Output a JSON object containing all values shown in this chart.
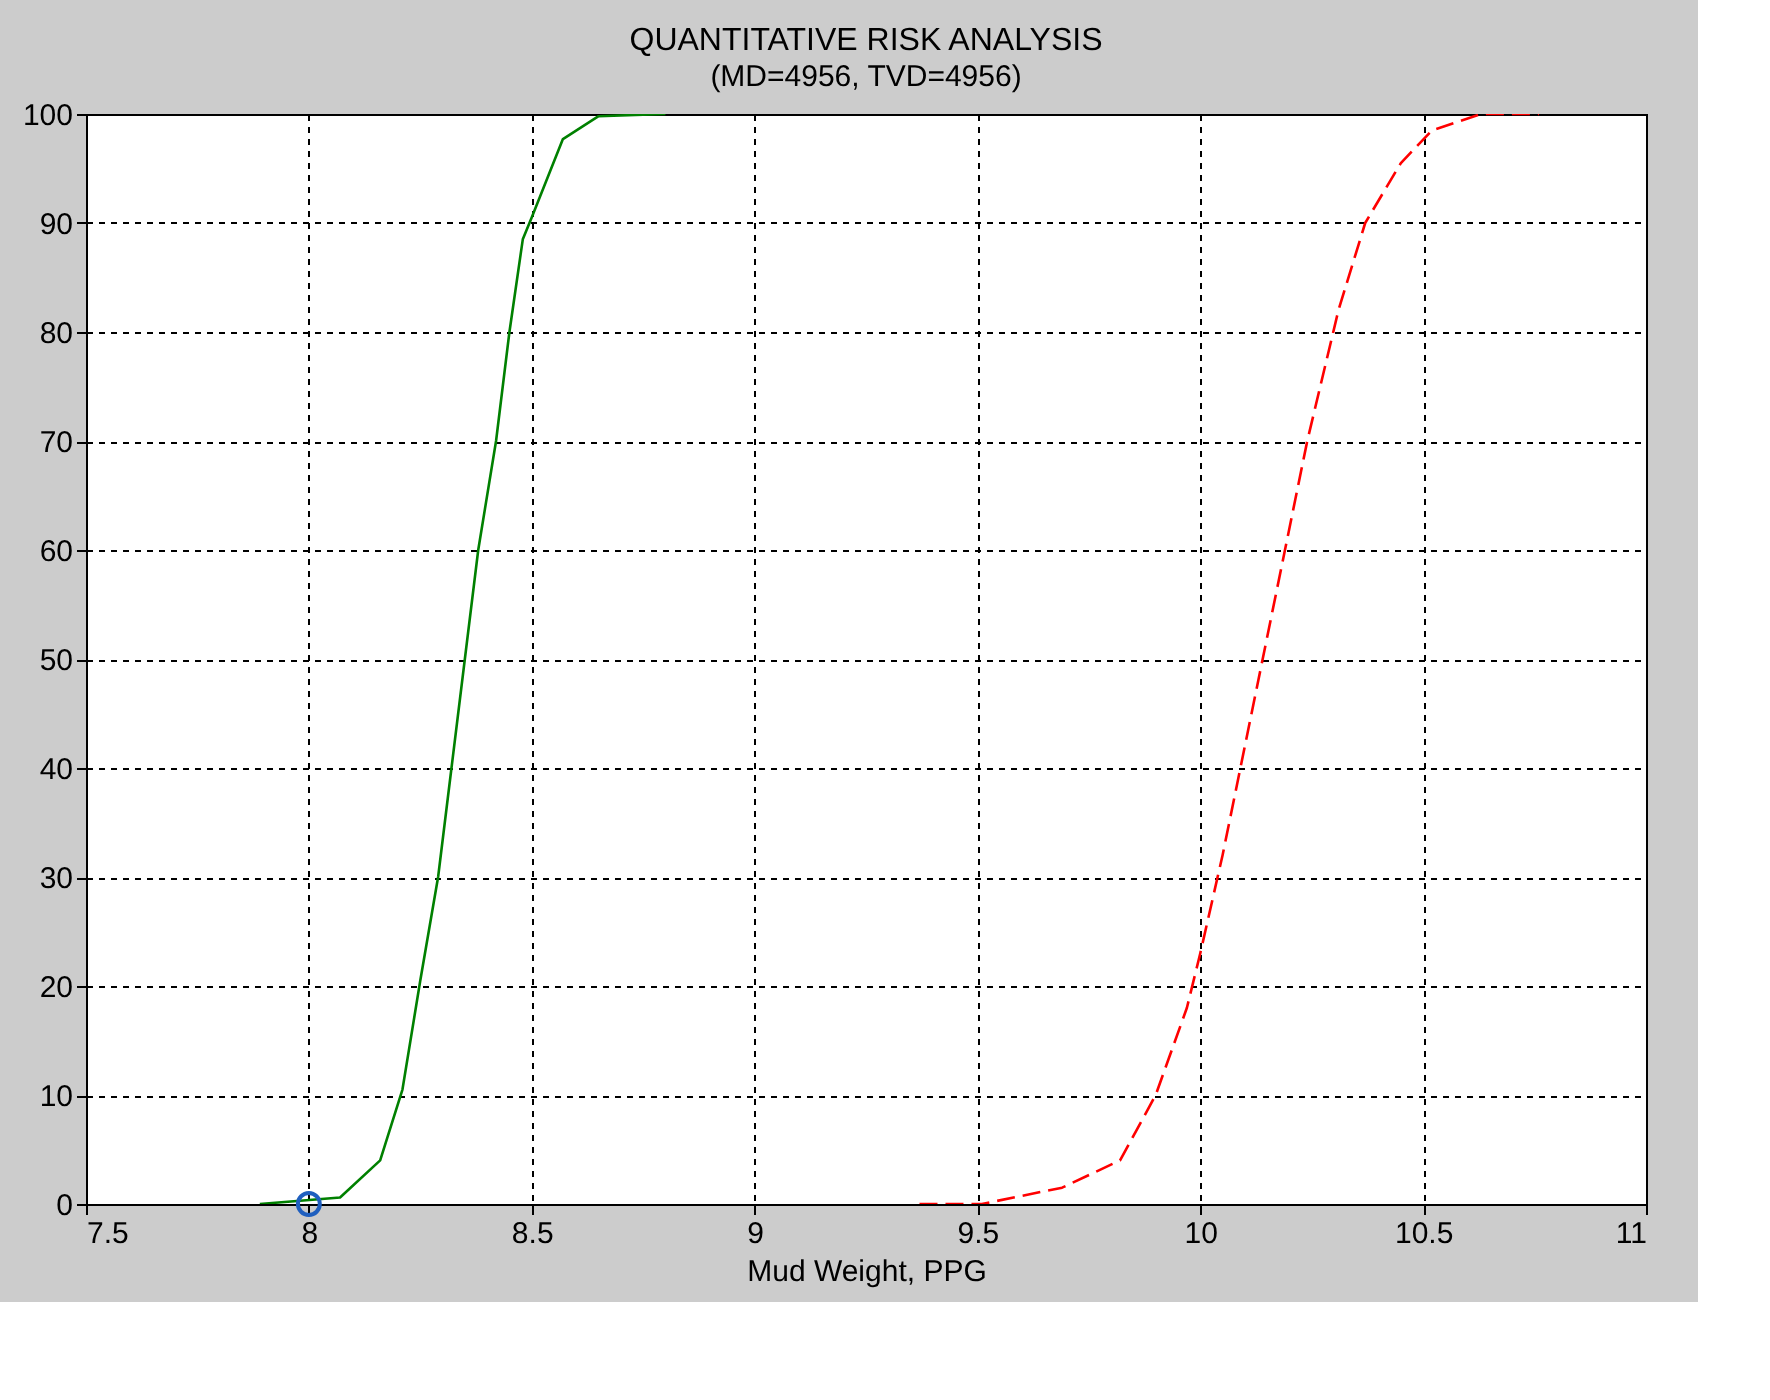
{
  "chart_data": {
    "type": "line",
    "title": "QUANTITATIVE RISK ANALYSIS",
    "subtitle": "(MD=4956, TVD=4956)",
    "xlabel": "Mud Weight, PPG",
    "xlim": [
      7.5,
      11
    ],
    "xticks": [
      7.5,
      8,
      8.5,
      9,
      9.5,
      10,
      10.5,
      11
    ],
    "ylim": [
      0,
      100
    ],
    "yticks": [
      0,
      10,
      20,
      30,
      40,
      50,
      60,
      70,
      80,
      90,
      100
    ],
    "grid": true,
    "series": [
      {
        "color": "#008000",
        "line_style": "solid",
        "x": [
          7.89,
          8.07,
          8.16,
          8.21,
          8.25,
          8.29,
          8.32,
          8.35,
          8.38,
          8.42,
          8.45,
          8.48,
          8.5,
          8.57,
          8.65,
          8.8
        ],
        "values": [
          0,
          0.6,
          4,
          10.5,
          20.5,
          30,
          40,
          50,
          60,
          70,
          80,
          88.5,
          90.5,
          97.7,
          99.8,
          100
        ]
      },
      {
        "color": "#ff0000",
        "line_style": "dashed",
        "x": [
          9.37,
          9.51,
          9.69,
          9.82,
          9.9,
          9.97,
          10.0,
          10.05,
          10.1,
          10.14,
          10.19,
          10.24,
          10.31,
          10.37,
          10.45,
          10.52,
          10.63,
          10.76
        ],
        "values": [
          0,
          0,
          1.5,
          4,
          10,
          18,
          23,
          32,
          42,
          50,
          60,
          70,
          82,
          90,
          95.5,
          98.5,
          100,
          100
        ]
      },
      {
        "type": "scatter",
        "color": "#1f5fbf",
        "marker": "circle",
        "x": [
          8
        ],
        "values": [
          0
        ]
      }
    ]
  }
}
